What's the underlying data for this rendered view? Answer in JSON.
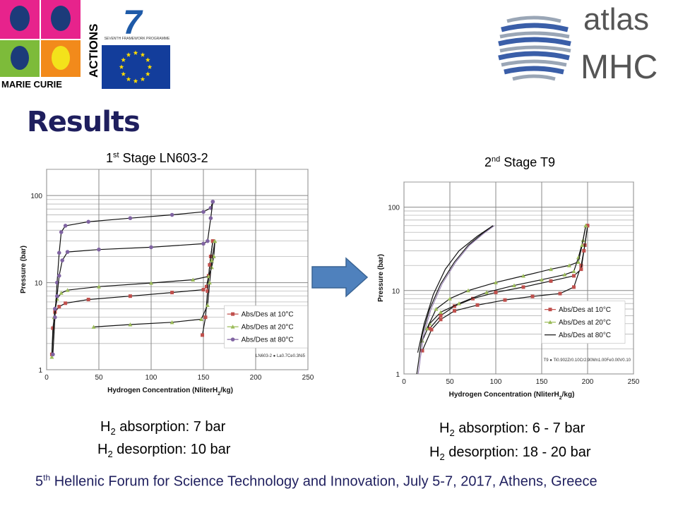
{
  "header": {
    "mc_logo_text": "MARIE CURIE ACTIONS",
    "mc_line1": "MARIE CURIE",
    "mc_line2": "ACTIONS",
    "fp7_text": "SEVENTH FRAMEWORK PROGRAMME",
    "fp7_number": "7",
    "atlas_line1": "atlas",
    "atlas_line2": "MHC"
  },
  "title": "Results",
  "stage1": {
    "sup": "st",
    "prefix": "1",
    "rest": " Stage LN603-2"
  },
  "stage2": {
    "sup": "nd",
    "prefix": "2",
    "rest": " Stage T9"
  },
  "summary": {
    "left_abs": {
      "h": "H",
      "sub": "2",
      "text": " absorption: 7 bar"
    },
    "left_des": {
      "h": "H",
      "sub": "2",
      "text": " desorption: 10 bar"
    },
    "right_abs": {
      "h": "H",
      "sub": "2",
      "text": " absorption: 6 - 7 bar"
    },
    "right_des": {
      "h": "H",
      "sub": "2",
      "text": " desorption: 18 - 20 bar"
    }
  },
  "footer": {
    "num": "5",
    "sup": "th",
    "text": " Hellenic Forum for Science Technology and Innovation, July 5-7, 2017, Athens, Greece"
  },
  "colors": {
    "title": "#1f1f5e",
    "arrow": "#4f81bd",
    "s10": "#c0504d",
    "s20": "#9bbb59",
    "s80": "#8064a2",
    "line": "#111111"
  },
  "chart_data": [
    {
      "type": "line",
      "xlabel_pre": "Hydrogen Concentration (NliterH",
      "xlabel_sub": "2",
      "xlabel_post": "/kg)",
      "ylabel": "Pressure (bar)",
      "xlim": [
        0,
        250
      ],
      "ylim": [
        1,
        200
      ],
      "yscale": "log",
      "xticks": [
        0,
        50,
        100,
        150,
        200,
        250
      ],
      "yticks": [
        1,
        10,
        100
      ],
      "legend_pos": "bottom-right",
      "note": "LN603-2 ● La0.7Ce0.3Ni5",
      "series": [
        {
          "name": "Abs/Des at 10°C",
          "marker": "square",
          "color": "#c0504d",
          "abs": [
            [
              5,
              1.5
            ],
            [
              6,
              3
            ],
            [
              8,
              4.6
            ],
            [
              12,
              5.3
            ],
            [
              18,
              5.8
            ],
            [
              40,
              6.4
            ],
            [
              80,
              7
            ],
            [
              120,
              7.7
            ],
            [
              150,
              8.3
            ],
            [
              153,
              9
            ],
            [
              155,
              12
            ],
            [
              157,
              20
            ],
            [
              159,
              30
            ]
          ],
          "des": [
            [
              159,
              30
            ],
            [
              156,
              16
            ],
            [
              154,
              8
            ],
            [
              152,
              4
            ],
            [
              149,
              2.5
            ]
          ]
        },
        {
          "name": "Abs/Des at 20°C",
          "marker": "triangle",
          "color": "#9bbb59",
          "abs": [
            [
              5,
              1.4
            ],
            [
              7,
              4
            ],
            [
              10,
              6.5
            ],
            [
              14,
              7.6
            ],
            [
              20,
              8.2
            ],
            [
              50,
              9
            ],
            [
              100,
              9.9
            ],
            [
              140,
              10.8
            ],
            [
              155,
              11.8
            ],
            [
              158,
              15
            ],
            [
              160,
              20
            ],
            [
              161,
              30
            ]
          ],
          "des": [
            [
              161,
              30
            ],
            [
              158,
              18
            ],
            [
              156,
              10
            ],
            [
              154,
              5.5
            ],
            [
              148,
              3.8
            ],
            [
              120,
              3.5
            ],
            [
              80,
              3.3
            ],
            [
              45,
              3.1
            ]
          ]
        },
        {
          "name": "Abs/Des at 80°C",
          "marker": "circle",
          "color": "#8064a2",
          "abs": [
            [
              6,
              1.5
            ],
            [
              8,
              4
            ],
            [
              10,
              10
            ],
            [
              12,
              22
            ],
            [
              14,
              38
            ],
            [
              18,
              45
            ],
            [
              40,
              50
            ],
            [
              80,
              55
            ],
            [
              120,
              60
            ],
            [
              150,
              65
            ],
            [
              157,
              72
            ],
            [
              159,
              85
            ]
          ],
          "des": [
            [
              159,
              85
            ],
            [
              157,
              55
            ],
            [
              154,
              30
            ],
            [
              150,
              28
            ],
            [
              100,
              25.5
            ],
            [
              50,
              24
            ],
            [
              20,
              22.5
            ],
            [
              15,
              18
            ],
            [
              12,
              12
            ],
            [
              10,
              7
            ],
            [
              8,
              5
            ]
          ]
        }
      ]
    },
    {
      "type": "line",
      "xlabel_pre": "Hydrogen Concentration (NliterH",
      "xlabel_sub": "2",
      "xlabel_post": "/kg)",
      "ylabel": "Pressure (bar)",
      "xlim": [
        0,
        250
      ],
      "ylim": [
        1,
        200
      ],
      "yscale": "log",
      "xticks": [
        0,
        50,
        100,
        150,
        200,
        250
      ],
      "yticks": [
        1,
        10,
        100
      ],
      "legend_pos": "bottom-right",
      "note": "T9 ● Ti0.902Zr0.10Cr2.90Mn1.00Fe0.00V0.10",
      "series": [
        {
          "name": "Abs/Des at 10°C",
          "marker": "square",
          "color": "#c0504d",
          "abs": [
            [
              20,
              1.9
            ],
            [
              30,
              3.4
            ],
            [
              40,
              4.5
            ],
            [
              55,
              5.7
            ],
            [
              80,
              6.7
            ],
            [
              110,
              7.7
            ],
            [
              140,
              8.5
            ],
            [
              170,
              9.2
            ],
            [
              185,
              11
            ],
            [
              193,
              20
            ],
            [
              197,
              35
            ],
            [
              200,
              60
            ]
          ],
          "des": [
            [
              200,
              60
            ],
            [
              196,
              30
            ],
            [
              193,
              18
            ],
            [
              185,
              15
            ],
            [
              160,
              13
            ],
            [
              130,
              11
            ],
            [
              100,
              9.5
            ],
            [
              75,
              8
            ],
            [
              55,
              6.5
            ],
            [
              40,
              5
            ],
            [
              28,
              3.5
            ]
          ]
        },
        {
          "name": "Abs/Des at 20°C",
          "marker": "triangle",
          "color": "#9bbb59",
          "abs": [
            [
              20,
              2.5
            ],
            [
              28,
              4
            ],
            [
              40,
              5.5
            ],
            [
              60,
              7
            ],
            [
              90,
              9.5
            ],
            [
              120,
              11.5
            ],
            [
              150,
              13.5
            ],
            [
              175,
              15.5
            ],
            [
              185,
              17
            ],
            [
              190,
              25
            ],
            [
              195,
              40
            ],
            [
              198,
              60
            ]
          ],
          "des": [
            [
              198,
              60
            ],
            [
              194,
              35
            ],
            [
              190,
              22
            ],
            [
              180,
              20
            ],
            [
              160,
              18
            ],
            [
              130,
              15
            ],
            [
              100,
              12.5
            ],
            [
              70,
              10
            ],
            [
              50,
              8
            ],
            [
              35,
              6
            ],
            [
              25,
              3.5
            ]
          ]
        },
        {
          "name": "Abs/Des at 80°C",
          "marker": "none",
          "color": "#111111",
          "abs": [
            [
              14,
              1.0
            ],
            [
              20,
              3
            ],
            [
              28,
              6
            ],
            [
              40,
              12
            ],
            [
              55,
              22
            ],
            [
              70,
              35
            ],
            [
              85,
              48
            ],
            [
              97,
              60
            ]
          ],
          "des": [
            [
              97,
              60
            ],
            [
              80,
              45
            ],
            [
              60,
              30
            ],
            [
              45,
              18
            ],
            [
              32,
              9
            ],
            [
              22,
              4
            ],
            [
              15,
              1.8
            ]
          ]
        }
      ]
    }
  ]
}
